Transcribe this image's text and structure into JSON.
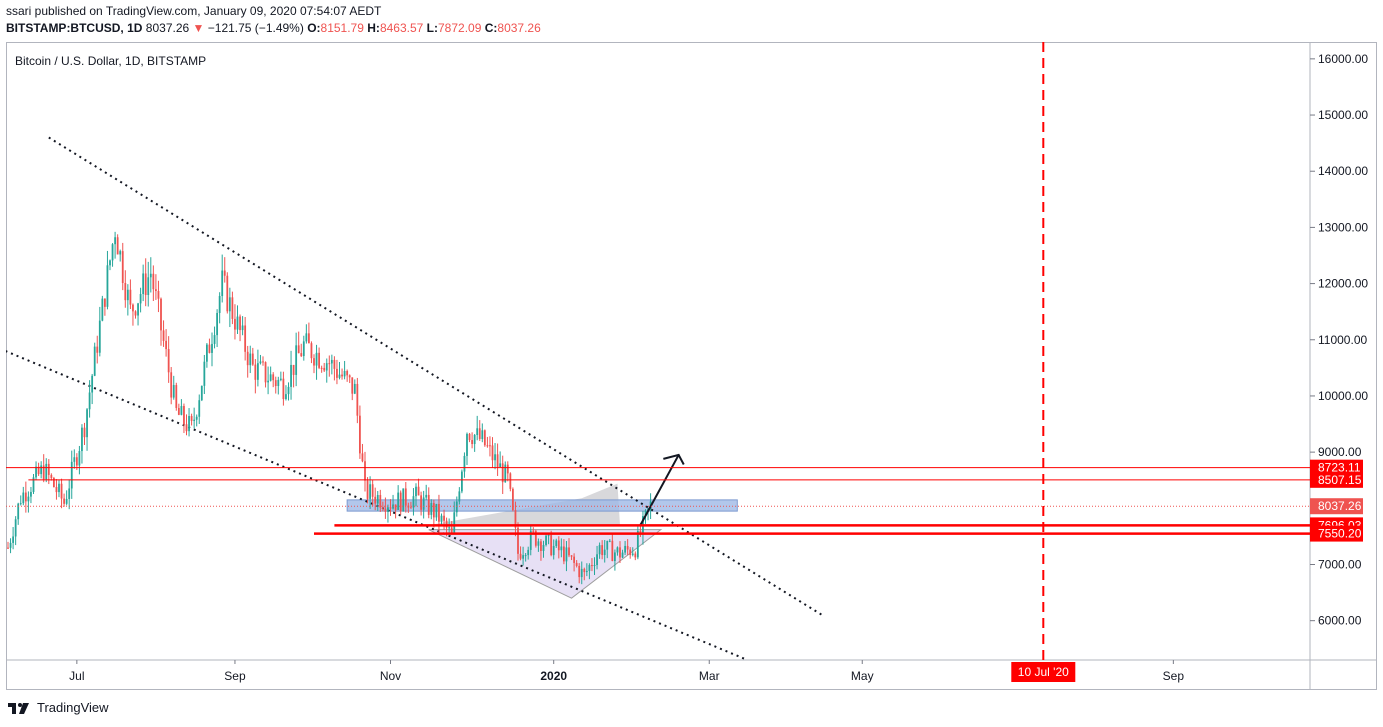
{
  "header": {
    "published": "ssari published on TradingView.com, January 09, 2020 07:54:07 AEDT",
    "symbol": "BITSTAMP:BTCUSD, 1D",
    "last": "8037.26",
    "change": "−121.75 (−1.49%)",
    "open_label": "O:",
    "open": "8151.79",
    "high_label": "H:",
    "high": "8463.57",
    "low_label": "L:",
    "low": "7872.09",
    "close_label": "C:",
    "close": "8037.26"
  },
  "series_title": "Bitcoin / U.S. Dollar, 1D, BITSTAMP",
  "footer_brand": "TradingView",
  "colors": {
    "up": "#26a69a",
    "down": "#ef5350",
    "level": "#ff0000",
    "grid": "#d1d4dc"
  },
  "chart_data": {
    "type": "candlestick",
    "symbol": "BITSTAMP:BTCUSD",
    "interval": "1D",
    "ylim": [
      5300,
      16300
    ],
    "yticks": [
      {
        "value": 16000,
        "label": "16000.00"
      },
      {
        "value": 15000,
        "label": "15000.00"
      },
      {
        "value": 14000,
        "label": "14000.00"
      },
      {
        "value": 13000,
        "label": "13000.00"
      },
      {
        "value": 12000,
        "label": "12000.00"
      },
      {
        "value": 11000,
        "label": "11000.00"
      },
      {
        "value": 10000,
        "label": "10000.00"
      },
      {
        "value": 9000,
        "label": "9000.00"
      },
      {
        "value": 7000,
        "label": "7000.00"
      },
      {
        "value": 6000,
        "label": "6000.00"
      }
    ],
    "xticks": [
      {
        "day": 27,
        "label": "Jul"
      },
      {
        "day": 89,
        "label": "Sep"
      },
      {
        "day": 150,
        "label": "Nov"
      },
      {
        "day": 214,
        "label": "2020"
      },
      {
        "day": 275,
        "label": "Mar"
      },
      {
        "day": 335,
        "label": "May"
      },
      {
        "day": 457,
        "label": "Sep"
      }
    ],
    "price_levels": [
      {
        "value": 8723.11,
        "label": "8723.11",
        "style": "thin"
      },
      {
        "value": 8507.15,
        "label": "8507.15",
        "style": "thin"
      },
      {
        "value": 8037.26,
        "label": "8037.26",
        "style": "last"
      },
      {
        "value": 7696.03,
        "label": "7696.03",
        "style": "thick"
      },
      {
        "value": 7550.2,
        "label": "7550.20",
        "style": "thick"
      }
    ],
    "vertical_marker": {
      "day": 406,
      "label": "10 Jul '20"
    },
    "key_points": [
      {
        "day": 0,
        "price": 7300
      },
      {
        "day": 5,
        "price": 8200
      },
      {
        "day": 14,
        "price": 8700
      },
      {
        "day": 22,
        "price": 8100
      },
      {
        "day": 30,
        "price": 9500
      },
      {
        "day": 42,
        "price": 13000
      },
      {
        "day": 48,
        "price": 11500
      },
      {
        "day": 56,
        "price": 12200
      },
      {
        "day": 66,
        "price": 9700
      },
      {
        "day": 72,
        "price": 9400
      },
      {
        "day": 84,
        "price": 12000
      },
      {
        "day": 96,
        "price": 10500
      },
      {
        "day": 108,
        "price": 10200
      },
      {
        "day": 116,
        "price": 10900
      },
      {
        "day": 126,
        "price": 10600
      },
      {
        "day": 136,
        "price": 10100
      },
      {
        "day": 140,
        "price": 8300
      },
      {
        "day": 150,
        "price": 8100
      },
      {
        "day": 160,
        "price": 8200
      },
      {
        "day": 168,
        "price": 7900
      },
      {
        "day": 174,
        "price": 7500
      },
      {
        "day": 180,
        "price": 9400
      },
      {
        "day": 186,
        "price": 9200
      },
      {
        "day": 196,
        "price": 8500
      },
      {
        "day": 200,
        "price": 7200
      },
      {
        "day": 206,
        "price": 7500
      },
      {
        "day": 210,
        "price": 7400
      },
      {
        "day": 218,
        "price": 7200
      },
      {
        "day": 226,
        "price": 6800
      },
      {
        "day": 232,
        "price": 7300
      },
      {
        "day": 240,
        "price": 7200
      },
      {
        "day": 246,
        "price": 7300
      },
      {
        "day": 252,
        "price": 8050
      }
    ]
  }
}
